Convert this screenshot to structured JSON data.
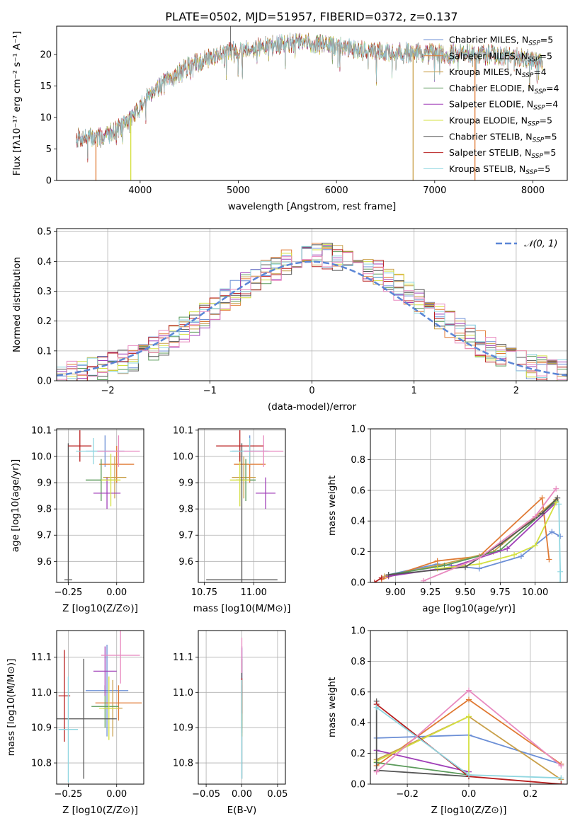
{
  "figure_title": "PLATE=0502, MJD=51957, FIBERID=0372, z=0.137",
  "model_colors": [
    "#6c8fd6",
    "#e07a34",
    "#c9a04a",
    "#5a9a5a",
    "#a03fb8",
    "#d4e040",
    "#555555",
    "#b81f1f",
    "#8fd6e0",
    "#e88ac0"
  ],
  "chart_data": [
    {
      "id": "spectrum",
      "type": "line",
      "title": "PLATE=0502, MJD=51957, FIBERID=0372, z=0.137",
      "xlabel": "wavelength [Angstrom, rest frame]",
      "ylabel": "Flux [fλ10⁻¹⁷ erg cm⁻² s⁻¹ A⁻¹]",
      "xlim": [
        3150,
        8350
      ],
      "ylim": [
        0,
        24.5
      ],
      "xticks": [
        4000,
        5000,
        6000,
        7000,
        8000
      ],
      "yticks": [
        0,
        5,
        10,
        15,
        20
      ],
      "legend_position": "upper right",
      "grid": false,
      "legend": [
        "Chabrier MILES, N_SSP=5",
        "Salpeter MILES, N_SSP=5",
        "Kroupa MILES, N_SSP=4",
        "Chabrier ELODIE, N_SSP=4",
        "Salpeter ELODIE, N_SSP=4",
        "Kroupa ELODIE, N_SSP=5",
        "Chabrier STELIB, N_SSP=5",
        "Salpeter STELIB, N_SSP=5",
        "Kroupa STELIB, N_SSP=5"
      ],
      "legend_colors": [
        "#6c8fd6",
        "#e07a34",
        "#c9a04a",
        "#5a9a5a",
        "#a03fb8",
        "#d4e040",
        "#555555",
        "#b81f1f",
        "#8fd6e0"
      ],
      "data_range_x": [
        3350,
        8100
      ],
      "continuum": {
        "x": [
          3350,
          3600,
          3800,
          3950,
          4100,
          4300,
          4500,
          4700,
          4900,
          5100,
          5300,
          5500,
          5700,
          5900,
          6100,
          6300,
          6500,
          6700,
          6900,
          7100,
          7300,
          7500,
          7700,
          7900,
          8100
        ],
        "y": [
          6.8,
          6.8,
          8.5,
          10.5,
          14,
          16,
          18.2,
          19.5,
          20.5,
          21,
          21.3,
          21.8,
          21.8,
          21.5,
          21.1,
          20.6,
          20.4,
          20.3,
          20.2,
          20.1,
          20.2,
          20,
          19.8,
          19.5,
          18.6
        ]
      },
      "drop_features": [
        {
          "model": "Salpeter MILES",
          "x": 3550
        },
        {
          "model": "Kroupa ELODIE",
          "x": 3905
        },
        {
          "model": "Kroupa MILES",
          "x": 6780
        },
        {
          "model": "Salpeter MILES",
          "x": 7410
        }
      ],
      "spike_features": [
        {
          "x": 4920,
          "y": 25
        }
      ]
    },
    {
      "id": "residuals",
      "type": "histogram",
      "xlabel": "(data-model)/error",
      "ylabel": "Normed distribution",
      "xlim": [
        -2.5,
        2.5
      ],
      "ylim": [
        0,
        0.51
      ],
      "xticks": [
        -2,
        -1,
        0,
        1,
        2
      ],
      "yticks": [
        0.0,
        0.1,
        0.2,
        0.3,
        0.4,
        0.5
      ],
      "grid": true,
      "legend_position": "upper right",
      "reference_curve": {
        "label": "𝒩(0, 1)",
        "mean": 0,
        "sigma": 1,
        "color": "#5b86d6",
        "style": "dashed"
      },
      "bin_range": [
        -2.5,
        2.5
      ],
      "bin_count": 50,
      "models": 10
    },
    {
      "id": "age_vs_Z",
      "type": "errorbar",
      "xlabel": "Z [log10(Z/Z⊙)]",
      "ylabel": "age  [log10(age/yr)]",
      "xlim": [
        -0.31,
        0.14
      ],
      "ylim": [
        9.52,
        10.105
      ],
      "xticks": [
        -0.25,
        0.0
      ],
      "yticks": [
        9.6,
        9.7,
        9.8,
        9.9,
        10.0,
        10.1
      ],
      "grid": true,
      "points": [
        {
          "x": -0.06,
          "xerr": 0.1,
          "y": 10.02,
          "yerr": 0.06
        },
        {
          "x": 0.0,
          "xerr": 0.09,
          "y": 9.97,
          "yerr": 0.07
        },
        {
          "x": -0.01,
          "xerr": 0.06,
          "y": 9.92,
          "yerr": 0.08
        },
        {
          "x": -0.08,
          "xerr": 0.08,
          "y": 9.91,
          "yerr": 0.08
        },
        {
          "x": -0.05,
          "xerr": 0.07,
          "y": 9.86,
          "yerr": 0.06
        },
        {
          "x": -0.03,
          "xerr": 0.05,
          "y": 9.91,
          "yerr": 0.1
        },
        {
          "x": -0.25,
          "xerr": 0.02,
          "y": 9.53,
          "yerr": 0.52
        },
        {
          "x": -0.19,
          "xerr": 0.06,
          "y": 10.04,
          "yerr": 0.06
        },
        {
          "x": -0.12,
          "xerr": 0.09,
          "y": 10.02,
          "yerr": 0.05
        },
        {
          "x": 0.01,
          "xerr": 0.11,
          "y": 10.02,
          "yerr": 0.06
        }
      ]
    },
    {
      "id": "age_vs_mass",
      "type": "errorbar",
      "xlabel": "mass [log10(M/M⊙)]",
      "ylabel": "",
      "xlim": [
        10.72,
        11.16
      ],
      "ylim": [
        9.52,
        10.105
      ],
      "xticks": [
        10.75,
        11.0
      ],
      "yticks": [
        9.6,
        9.7,
        9.8,
        9.9,
        10.0,
        10.1
      ],
      "grid": true,
      "points": [
        {
          "x": 10.98,
          "xerr": 0.09,
          "y": 10.02,
          "yerr": 0.06
        },
        {
          "x": 10.98,
          "xerr": 0.08,
          "y": 9.97,
          "yerr": 0.07
        },
        {
          "x": 10.95,
          "xerr": 0.06,
          "y": 9.92,
          "yerr": 0.08
        },
        {
          "x": 10.96,
          "xerr": 0.05,
          "y": 9.91,
          "yerr": 0.08
        },
        {
          "x": 11.06,
          "xerr": 0.05,
          "y": 9.86,
          "yerr": 0.06
        },
        {
          "x": 10.93,
          "xerr": 0.05,
          "y": 9.91,
          "yerr": 0.1
        },
        {
          "x": 10.94,
          "xerr": 0.18,
          "y": 9.53,
          "yerr": 0.52
        },
        {
          "x": 10.93,
          "xerr": 0.12,
          "y": 10.04,
          "yerr": 0.06
        },
        {
          "x": 10.98,
          "xerr": 0.1,
          "y": 10.02,
          "yerr": 0.05
        },
        {
          "x": 11.05,
          "xerr": 0.1,
          "y": 10.02,
          "yerr": 0.06
        }
      ]
    },
    {
      "id": "weight_vs_age",
      "type": "line",
      "xlabel": "age  [log10(age/yr)]",
      "ylabel": "mass weight",
      "xlim": [
        8.82,
        10.23
      ],
      "ylim": [
        0,
        1
      ],
      "xticks": [
        9.0,
        9.25,
        9.5,
        9.75,
        10.0
      ],
      "yticks": [
        0.0,
        0.2,
        0.4,
        0.6,
        0.8,
        1.0
      ],
      "grid": true,
      "series": [
        {
          "x": [
            8.95,
            9.3,
            9.6,
            9.9,
            10.12,
            10.18
          ],
          "y": [
            0.05,
            0.12,
            0.09,
            0.17,
            0.33,
            0.3
          ]
        },
        {
          "x": [
            8.9,
            9.3,
            9.6,
            10.05,
            10.1
          ],
          "y": [
            0.02,
            0.14,
            0.17,
            0.55,
            0.15
          ]
        },
        {
          "x": [
            8.92,
            9.3,
            9.7,
            10.15
          ],
          "y": [
            0.04,
            0.11,
            0.2,
            0.54
          ]
        },
        {
          "x": [
            8.95,
            9.35,
            9.75,
            10.15
          ],
          "y": [
            0.05,
            0.11,
            0.21,
            0.53
          ]
        },
        {
          "x": [
            8.95,
            9.4,
            9.8,
            10.15
          ],
          "y": [
            0.04,
            0.1,
            0.22,
            0.52
          ]
        },
        {
          "x": [
            9.3,
            9.6,
            9.85,
            10.0,
            10.15
          ],
          "y": [
            0.09,
            0.12,
            0.18,
            0.24,
            0.52
          ]
        },
        {
          "x": [
            8.95,
            9.5,
            9.75,
            10.05,
            10.16
          ],
          "y": [
            0.05,
            0.1,
            0.25,
            0.45,
            0.55
          ]
        },
        {
          "x": [
            8.85,
            8.9
          ],
          "y": [
            0.0,
            0.03
          ]
        },
        {
          "x": [
            10.17,
            10.18,
            10.18
          ],
          "y": [
            0.51,
            0.07,
            0.0
          ]
        },
        {
          "x": [
            9.2,
            9.6,
            10.0,
            10.15
          ],
          "y": [
            0.01,
            0.16,
            0.43,
            0.61
          ]
        }
      ]
    },
    {
      "id": "mass_vs_Z",
      "type": "errorbar",
      "xlabel": "Z [log10(Z/Z⊙)]",
      "ylabel": "mass [log10(M/M⊙)]",
      "xlim": [
        -0.31,
        0.14
      ],
      "ylim": [
        10.74,
        11.175
      ],
      "xticks": [
        -0.25,
        0.0
      ],
      "yticks": [
        10.8,
        10.9,
        11.0,
        11.1
      ],
      "grid": true,
      "points": [
        {
          "x": -0.05,
          "xerr": 0.11,
          "y": 11.005,
          "yerr": 0.13
        },
        {
          "x": 0.01,
          "xerr": 0.12,
          "y": 10.97,
          "yerr": 0.05
        },
        {
          "x": -0.02,
          "xerr": 0.05,
          "y": 10.955,
          "yerr": 0.08
        },
        {
          "x": -0.06,
          "xerr": 0.07,
          "y": 10.96,
          "yerr": 0.06
        },
        {
          "x": -0.06,
          "xerr": 0.06,
          "y": 11.06,
          "yerr": 0.07
        },
        {
          "x": -0.04,
          "xerr": 0.05,
          "y": 10.955,
          "yerr": 0.09
        },
        {
          "x": -0.17,
          "xerr": 0.17,
          "y": 10.925,
          "yerr": 0.17
        },
        {
          "x": -0.27,
          "xerr": 0.03,
          "y": 10.99,
          "yerr": 0.13
        },
        {
          "x": -0.25,
          "xerr": 0.05,
          "y": 10.895,
          "yerr": 0.15
        },
        {
          "x": 0.02,
          "xerr": 0.1,
          "y": 11.105,
          "yerr": 0.08
        }
      ]
    },
    {
      "id": "mass_vs_ebv",
      "type": "errorbar",
      "xlabel": "E(B-V)",
      "ylabel": "",
      "xlim": [
        -0.061,
        0.061
      ],
      "ylim": [
        10.74,
        11.175
      ],
      "xticks": [
        -0.05,
        0.0,
        0.05
      ],
      "yticks": [
        10.8,
        10.9,
        11.0,
        11.1
      ],
      "grid": true,
      "points": [
        {
          "x": 0.0,
          "xerr": 0.0,
          "y": 11.005,
          "yerr": 0.12
        },
        {
          "x": 0.0,
          "xerr": 0.0,
          "y": 10.97,
          "yerr": 0.05
        },
        {
          "x": 0.0,
          "xerr": 0.0,
          "y": 10.955,
          "yerr": 0.08
        },
        {
          "x": 0.0,
          "xerr": 0.0,
          "y": 10.96,
          "yerr": 0.06
        },
        {
          "x": 0.0,
          "xerr": 0.0,
          "y": 11.06,
          "yerr": 0.07
        },
        {
          "x": 0.0,
          "xerr": 0.0,
          "y": 10.955,
          "yerr": 0.08
        },
        {
          "x": 0.0,
          "xerr": 0.0,
          "y": 10.925,
          "yerr": 0.17
        },
        {
          "x": 0.0,
          "xerr": 0.0,
          "y": 10.99,
          "yerr": 0.05
        },
        {
          "x": 0.0,
          "xerr": 0.0,
          "y": 10.895,
          "yerr": 0.14
        },
        {
          "x": 0.0,
          "xerr": 0.0,
          "y": 11.105,
          "yerr": 0.05
        }
      ]
    },
    {
      "id": "weight_vs_Z",
      "type": "line",
      "xlabel": "Z [log10(Z/Z⊙)]",
      "ylabel": "mass weight",
      "xlim": [
        -0.32,
        0.32
      ],
      "ylim": [
        0,
        1
      ],
      "xticks": [
        -0.2,
        0.0,
        0.2
      ],
      "yticks": [
        0.0,
        0.2,
        0.4,
        0.6,
        0.8,
        1.0
      ],
      "grid": true,
      "series": [
        {
          "x": [
            -0.3,
            0.0,
            0.3
          ],
          "y": [
            0.3,
            0.32,
            0.13
          ]
        },
        {
          "x": [
            -0.3,
            0.0,
            0.3
          ],
          "y": [
            0.12,
            0.55,
            0.13
          ]
        },
        {
          "x": [
            -0.3,
            0.0,
            0.3
          ],
          "y": [
            0.16,
            0.44,
            0.03
          ]
        },
        {
          "x": [
            -0.3,
            0.0
          ],
          "y": [
            0.14,
            0.06
          ]
        },
        {
          "x": [
            -0.3,
            0.0
          ],
          "y": [
            0.22,
            0.08
          ]
        },
        {
          "x": [
            -0.3,
            0.0,
            0.0
          ],
          "y": [
            0.15,
            0.44,
            0.06
          ]
        },
        {
          "x": [
            -0.3,
            -0.3,
            0.0
          ],
          "y": [
            0.54,
            0.09,
            0.05
          ]
        },
        {
          "x": [
            -0.3,
            0.0,
            0.3
          ],
          "y": [
            0.52,
            0.05,
            0.0
          ]
        },
        {
          "x": [
            -0.3,
            0.0,
            0.3
          ],
          "y": [
            0.5,
            0.06,
            0.04
          ]
        },
        {
          "x": [
            -0.3,
            0.0,
            0.3
          ],
          "y": [
            0.08,
            0.61,
            0.12
          ]
        }
      ]
    }
  ]
}
